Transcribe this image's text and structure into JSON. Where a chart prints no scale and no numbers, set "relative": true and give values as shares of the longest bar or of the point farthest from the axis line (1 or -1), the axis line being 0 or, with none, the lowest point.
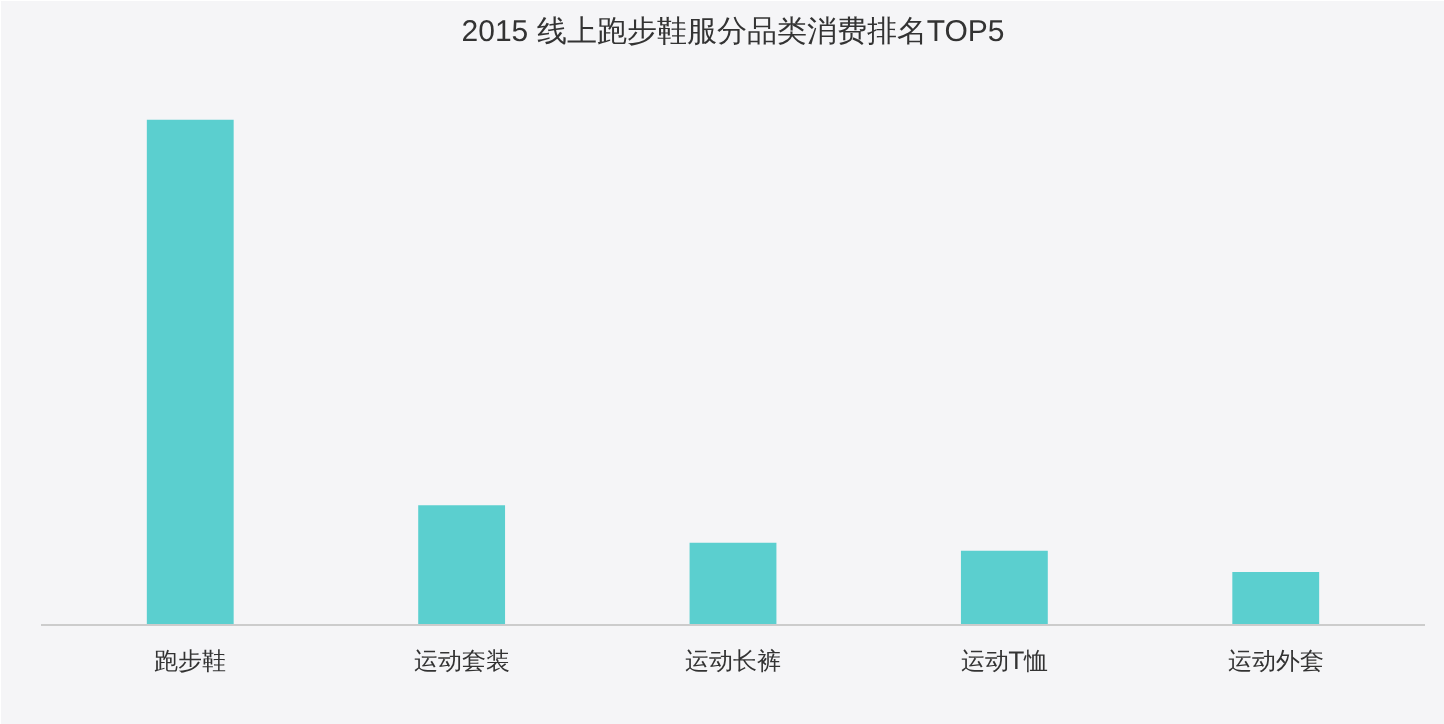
{
  "chart_data": {
    "type": "bar",
    "title": "2015 线上跑步鞋服分品类消费排名TOP5",
    "categories": [
      "跑步鞋",
      "运动套装",
      "运动长裤",
      "运动T恤",
      "运动外套"
    ],
    "values": [
      1,
      0.237,
      0.163,
      0.147,
      0.105
    ],
    "color": "#5bcfcf",
    "relative": true
  }
}
